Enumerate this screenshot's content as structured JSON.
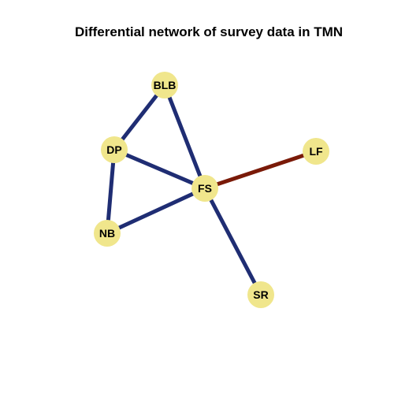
{
  "chart_data": {
    "type": "network",
    "title": "Differential network of survey data in TMN",
    "node_color": "#f0e68c",
    "nodes": [
      {
        "id": "BLB",
        "label": "BLB"
      },
      {
        "id": "DP",
        "label": "DP"
      },
      {
        "id": "LF",
        "label": "LF"
      },
      {
        "id": "FS",
        "label": "FS"
      },
      {
        "id": "NB",
        "label": "NB"
      },
      {
        "id": "SR",
        "label": "SR"
      }
    ],
    "edges": [
      {
        "source": "BLB",
        "target": "DP",
        "color": "#1f2d73"
      },
      {
        "source": "BLB",
        "target": "FS",
        "color": "#1f2d73"
      },
      {
        "source": "DP",
        "target": "FS",
        "color": "#1f2d73"
      },
      {
        "source": "DP",
        "target": "NB",
        "color": "#1f2d73"
      },
      {
        "source": "NB",
        "target": "FS",
        "color": "#1f2d73"
      },
      {
        "source": "FS",
        "target": "SR",
        "color": "#1f2d73"
      },
      {
        "source": "FS",
        "target": "LF",
        "color": "#7a1a08"
      }
    ]
  }
}
